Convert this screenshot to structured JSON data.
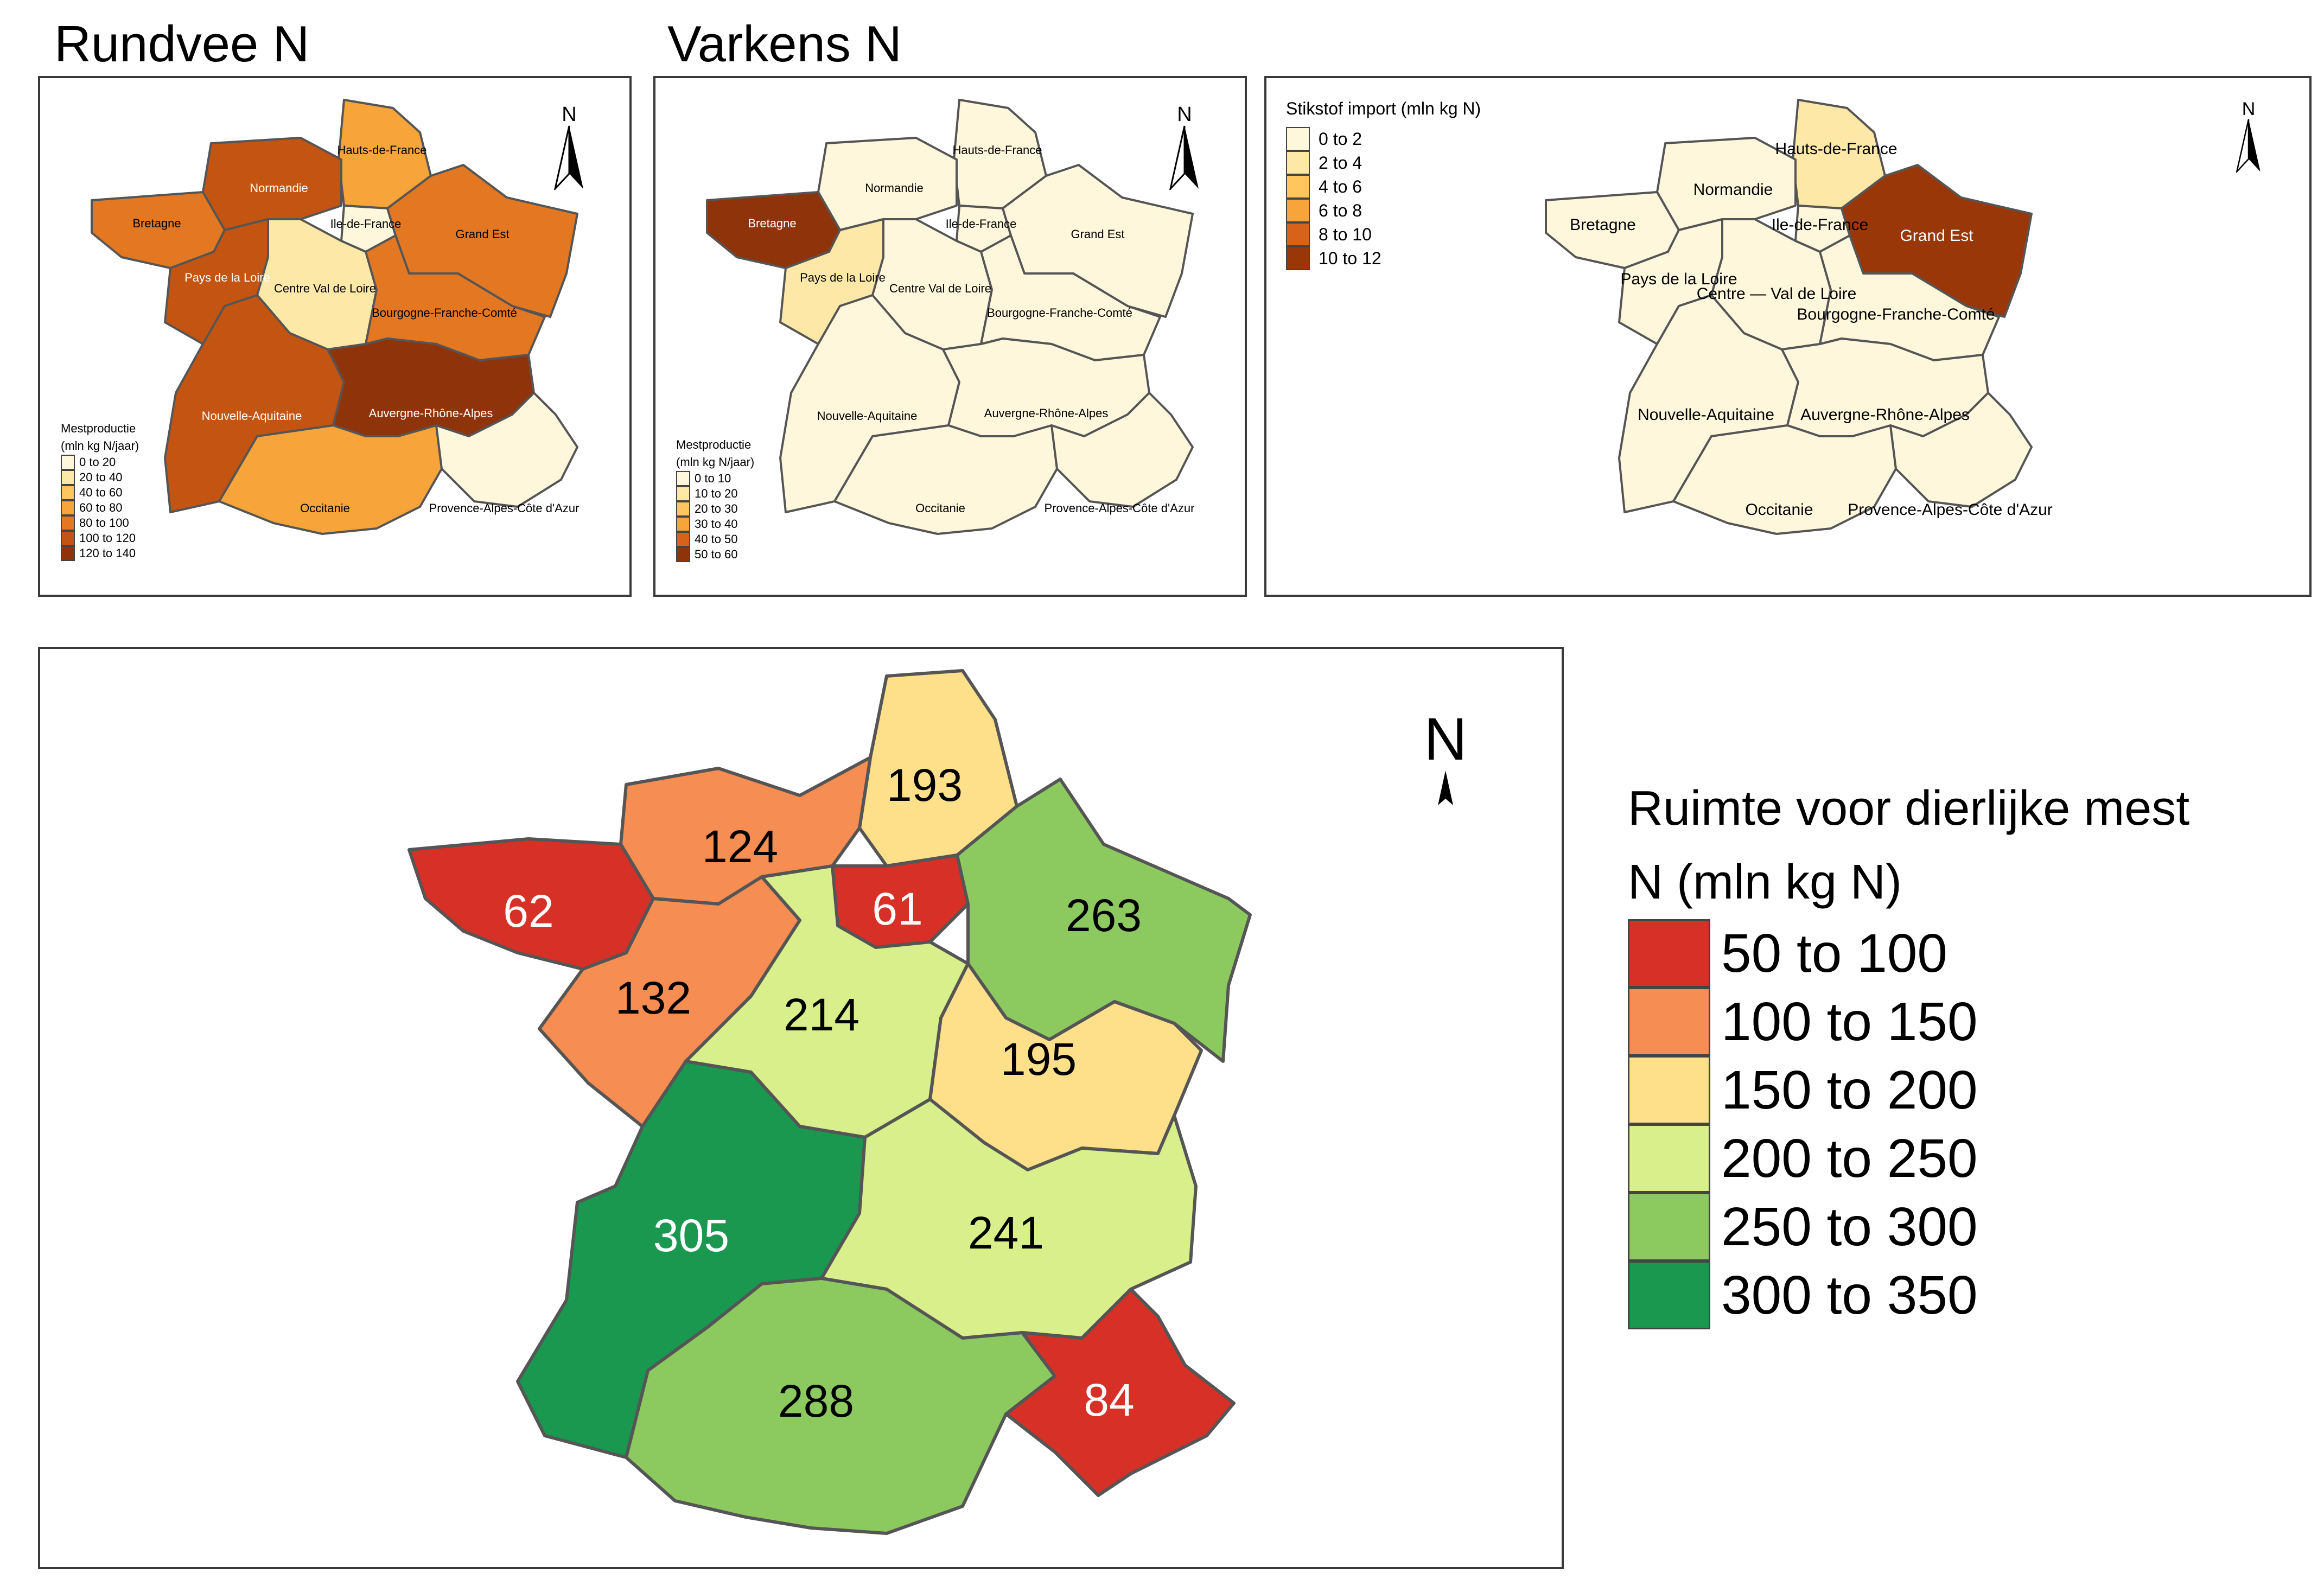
{
  "maps": {
    "rundvee": {
      "title": "Rundvee N",
      "north_label": "N",
      "legend": {
        "title_lines": [
          "Mestproductie",
          "(mln kg N/jaar)"
        ],
        "classes": [
          {
            "label": "0 to 20",
            "color": "#FFF7DC"
          },
          {
            "label": "20 to 40",
            "color": "#FEE8A8"
          },
          {
            "label": "40 to 60",
            "color": "#FEC65C"
          },
          {
            "label": "60 to 80",
            "color": "#F7A43B"
          },
          {
            "label": "80 to 100",
            "color": "#E37722"
          },
          {
            "label": "100 to 120",
            "color": "#C45412"
          },
          {
            "label": "120 to 140",
            "color": "#8E330A"
          }
        ]
      },
      "regions": {
        "hdf": {
          "label": "Hauts-de-France",
          "cls": 3
        },
        "nor": {
          "label": "Normandie",
          "cls": 5
        },
        "bre": {
          "label": "Bretagne",
          "cls": 4
        },
        "idf": {
          "label": "Ile-de-France",
          "cls": 0
        },
        "ges": {
          "label": "Grand Est",
          "cls": 4
        },
        "pdl": {
          "label": "Pays de la Loire",
          "cls": 5
        },
        "cvl": {
          "label": "Centre Val de Loire",
          "cls": 1
        },
        "bfc": {
          "label": "Bourgogne-Franche-Comté",
          "cls": 4
        },
        "naq": {
          "label": "Nouvelle-Aquitaine",
          "cls": 5
        },
        "ara": {
          "label": "Auvergne-Rhône-Alpes",
          "cls": 6
        },
        "occ": {
          "label": "Occitanie",
          "cls": 3
        },
        "pac": {
          "label": "Provence-Alpes-Côte d'Azur",
          "cls": 0
        }
      }
    },
    "varkens": {
      "title": "Varkens N",
      "north_label": "N",
      "legend": {
        "title_lines": [
          "Mestproductie",
          "(mln kg N/jaar)"
        ],
        "classes": [
          {
            "label": "0 to 10",
            "color": "#FFF7DC"
          },
          {
            "label": "10 to 20",
            "color": "#FEE8A8"
          },
          {
            "label": "20 to 30",
            "color": "#FEC65C"
          },
          {
            "label": "30 to 40",
            "color": "#F7A43B"
          },
          {
            "label": "40 to 50",
            "color": "#D9621A"
          },
          {
            "label": "50 to 60",
            "color": "#8E330A"
          }
        ]
      },
      "regions": {
        "hdf": {
          "label": "Hauts-de-France",
          "cls": 0
        },
        "nor": {
          "label": "Normandie",
          "cls": 0
        },
        "bre": {
          "label": "Bretagne",
          "cls": 5
        },
        "idf": {
          "label": "Ile-de-France",
          "cls": 0
        },
        "ges": {
          "label": "Grand Est",
          "cls": 0
        },
        "pdl": {
          "label": "Pays de la Loire",
          "cls": 1
        },
        "cvl": {
          "label": "Centre Val de Loire",
          "cls": 0
        },
        "bfc": {
          "label": "Bourgogne-Franche-Comté",
          "cls": 0
        },
        "naq": {
          "label": "Nouvelle-Aquitaine",
          "cls": 0
        },
        "ara": {
          "label": "Auvergne-Rhône-Alpes",
          "cls": 0
        },
        "occ": {
          "label": "Occitanie",
          "cls": 0
        },
        "pac": {
          "label": "Provence-Alpes-Côte d'Azur",
          "cls": 0
        }
      }
    },
    "import": {
      "north_label": "N",
      "legend": {
        "title_lines": [
          "Stikstof import (mln kg N)"
        ],
        "classes": [
          {
            "label": "0 to 2",
            "color": "#FFF7DC"
          },
          {
            "label": "2 to 4",
            "color": "#FEE8A8"
          },
          {
            "label": "4 to 6",
            "color": "#FEC65C"
          },
          {
            "label": "6 to 8",
            "color": "#F7A43B"
          },
          {
            "label": "8 to 10",
            "color": "#D9621A"
          },
          {
            "label": "10 to 12",
            "color": "#9A3708"
          }
        ]
      },
      "regions": {
        "hdf": {
          "label": "Hauts-de-France",
          "cls": 1
        },
        "nor": {
          "label": "Normandie",
          "cls": 0
        },
        "bre": {
          "label": "Bretagne",
          "cls": 0
        },
        "idf": {
          "label": "Ile-de-France",
          "cls": 0
        },
        "ges": {
          "label": "Grand Est",
          "cls": 5
        },
        "pdl": {
          "label": "Pays de la Loire",
          "cls": 0
        },
        "cvl": {
          "label": "Centre — Val de Loire",
          "cls": 0
        },
        "bfc": {
          "label": "Bourgogne-Franche-Comté",
          "cls": 0
        },
        "naq": {
          "label": "Nouvelle-Aquitaine",
          "cls": 0
        },
        "ara": {
          "label": "Auvergne-Rhône-Alpes",
          "cls": 0
        },
        "occ": {
          "label": "Occitanie",
          "cls": 0
        },
        "pac": {
          "label": "Provence-Alpes-Côte d'Azur",
          "cls": 0
        }
      }
    },
    "ruimte": {
      "north_label": "N",
      "legend": {
        "title_lines": [
          "Ruimte voor dierlijke mest",
          "N (mln kg N)"
        ],
        "classes": [
          {
            "label": " 50 to 100",
            "color": "#D73027"
          },
          {
            "label": "100 to 150",
            "color": "#F68D52"
          },
          {
            "label": "150 to 200",
            "color": "#FEE08B"
          },
          {
            "label": "200 to 250",
            "color": "#D9EF8B"
          },
          {
            "label": "250 to 300",
            "color": "#8CCA60"
          },
          {
            "label": "300 to 350",
            "color": "#1A9850"
          }
        ]
      },
      "regions": {
        "hdf": {
          "value": "193",
          "cls": 2
        },
        "nor": {
          "value": "124",
          "cls": 1
        },
        "bre": {
          "value": "62",
          "cls": 0
        },
        "idf": {
          "value": "61",
          "cls": 0
        },
        "ges": {
          "value": "263",
          "cls": 4
        },
        "pdl": {
          "value": "132",
          "cls": 1
        },
        "cvl": {
          "value": "214",
          "cls": 3
        },
        "bfc": {
          "value": "195",
          "cls": 2
        },
        "naq": {
          "value": "305",
          "cls": 5
        },
        "ara": {
          "value": "241",
          "cls": 3
        },
        "occ": {
          "value": "288",
          "cls": 4
        },
        "pac": {
          "value": "84",
          "cls": 0
        }
      }
    }
  }
}
